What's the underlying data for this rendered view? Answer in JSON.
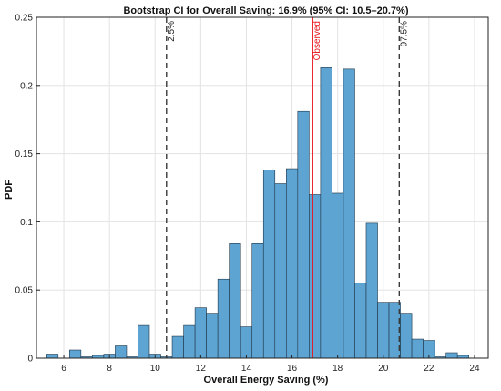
{
  "chart_data": {
    "type": "bar",
    "title": "Bootstrap CI for Overall Saving: 16.9% (95% CI: 10.5–20.7%)",
    "xlabel": "Overall Energy Saving (%)",
    "ylabel": "PDF",
    "xlim": [
      4.8,
      24.6
    ],
    "ylim": [
      0,
      0.25
    ],
    "xticks": [
      6,
      8,
      10,
      12,
      14,
      16,
      18,
      20,
      22,
      24
    ],
    "yticks": [
      0,
      0.05,
      0.1,
      0.15,
      0.2,
      0.25
    ],
    "ytick_labels": [
      "0",
      "0.05",
      "0.1",
      "0.15",
      "0.2",
      "0.25"
    ],
    "grid": true,
    "bin_width": 0.5,
    "bins": [
      {
        "x": 5.5,
        "y": 0.003
      },
      {
        "x": 6.5,
        "y": 0.006
      },
      {
        "x": 7.0,
        "y": 0.001
      },
      {
        "x": 7.5,
        "y": 0.002
      },
      {
        "x": 8.0,
        "y": 0.003
      },
      {
        "x": 8.5,
        "y": 0.009
      },
      {
        "x": 9.0,
        "y": 0.001
      },
      {
        "x": 9.5,
        "y": 0.024
      },
      {
        "x": 10.0,
        "y": 0.003
      },
      {
        "x": 10.5,
        "y": 0.001
      },
      {
        "x": 11.0,
        "y": 0.016
      },
      {
        "x": 11.5,
        "y": 0.024
      },
      {
        "x": 12.0,
        "y": 0.037
      },
      {
        "x": 12.5,
        "y": 0.033
      },
      {
        "x": 13.0,
        "y": 0.058
      },
      {
        "x": 13.5,
        "y": 0.084
      },
      {
        "x": 14.0,
        "y": 0.023
      },
      {
        "x": 14.5,
        "y": 0.084
      },
      {
        "x": 15.0,
        "y": 0.138
      },
      {
        "x": 15.5,
        "y": 0.128
      },
      {
        "x": 16.0,
        "y": 0.139
      },
      {
        "x": 16.5,
        "y": 0.181
      },
      {
        "x": 17.0,
        "y": 0.12
      },
      {
        "x": 17.5,
        "y": 0.213
      },
      {
        "x": 18.0,
        "y": 0.121
      },
      {
        "x": 18.5,
        "y": 0.212
      },
      {
        "x": 19.0,
        "y": 0.055
      },
      {
        "x": 19.5,
        "y": 0.099
      },
      {
        "x": 20.0,
        "y": 0.041
      },
      {
        "x": 20.5,
        "y": 0.041
      },
      {
        "x": 21.0,
        "y": 0.033
      },
      {
        "x": 21.5,
        "y": 0.014
      },
      {
        "x": 22.0,
        "y": 0.013
      },
      {
        "x": 22.5,
        "y": 0.001
      },
      {
        "x": 23.0,
        "y": 0.004
      },
      {
        "x": 23.5,
        "y": 0.002
      }
    ],
    "lines": [
      {
        "label": "2.5%",
        "x": 10.5,
        "style": "dashed",
        "color": "#3a3a3a"
      },
      {
        "label": "Observed",
        "x": 16.9,
        "style": "solid",
        "color": "#e8141c"
      },
      {
        "label": "97.5%",
        "x": 20.7,
        "style": "dashed",
        "color": "#3a3a3a"
      }
    ],
    "bar_color": "#5da4d3",
    "bar_edge_color": "#1f3547"
  }
}
